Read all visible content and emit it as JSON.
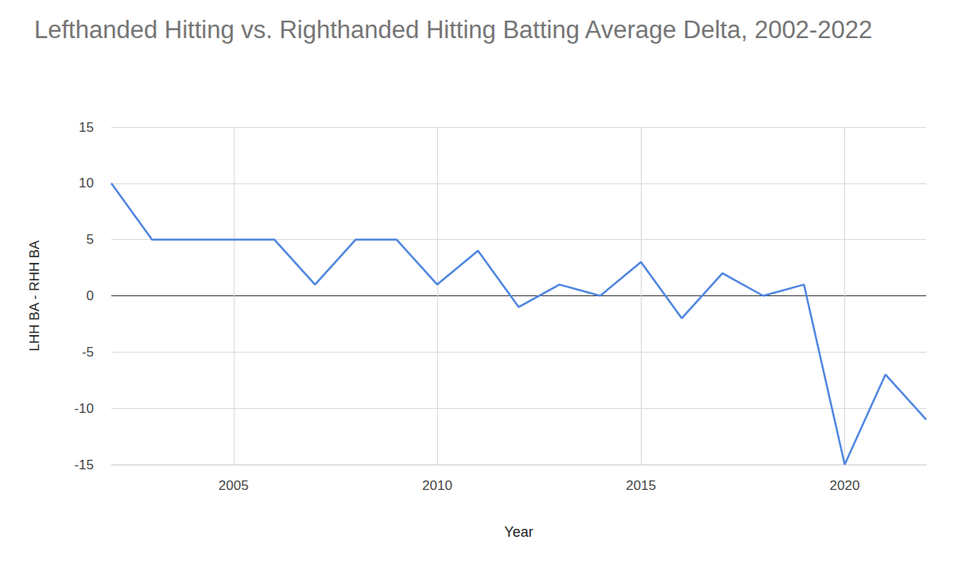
{
  "chart_data": {
    "type": "line",
    "title": "Lefthanded Hitting vs. Righthanded Hitting Batting Average Delta, 2002-2022",
    "x_label": "Year",
    "y_label": "LHH BA - RHH BA",
    "x": [
      2002,
      2003,
      2004,
      2005,
      2006,
      2007,
      2008,
      2009,
      2010,
      2011,
      2012,
      2013,
      2014,
      2015,
      2016,
      2017,
      2018,
      2019,
      2020,
      2021,
      2022
    ],
    "values": [
      10,
      5,
      5,
      5,
      5,
      1,
      5,
      5,
      1,
      4,
      -1,
      1,
      0,
      3,
      -2,
      2,
      0,
      1,
      -15,
      -7,
      -11
    ],
    "color": "#4f86e0",
    "xlim": [
      2002,
      2022
    ],
    "xticks": [
      2005,
      2010,
      2015,
      2020
    ],
    "ylim": [
      -15,
      15
    ],
    "yticks": [
      -15,
      -10,
      -5,
      0,
      5,
      10,
      15
    ],
    "grid": true
  }
}
